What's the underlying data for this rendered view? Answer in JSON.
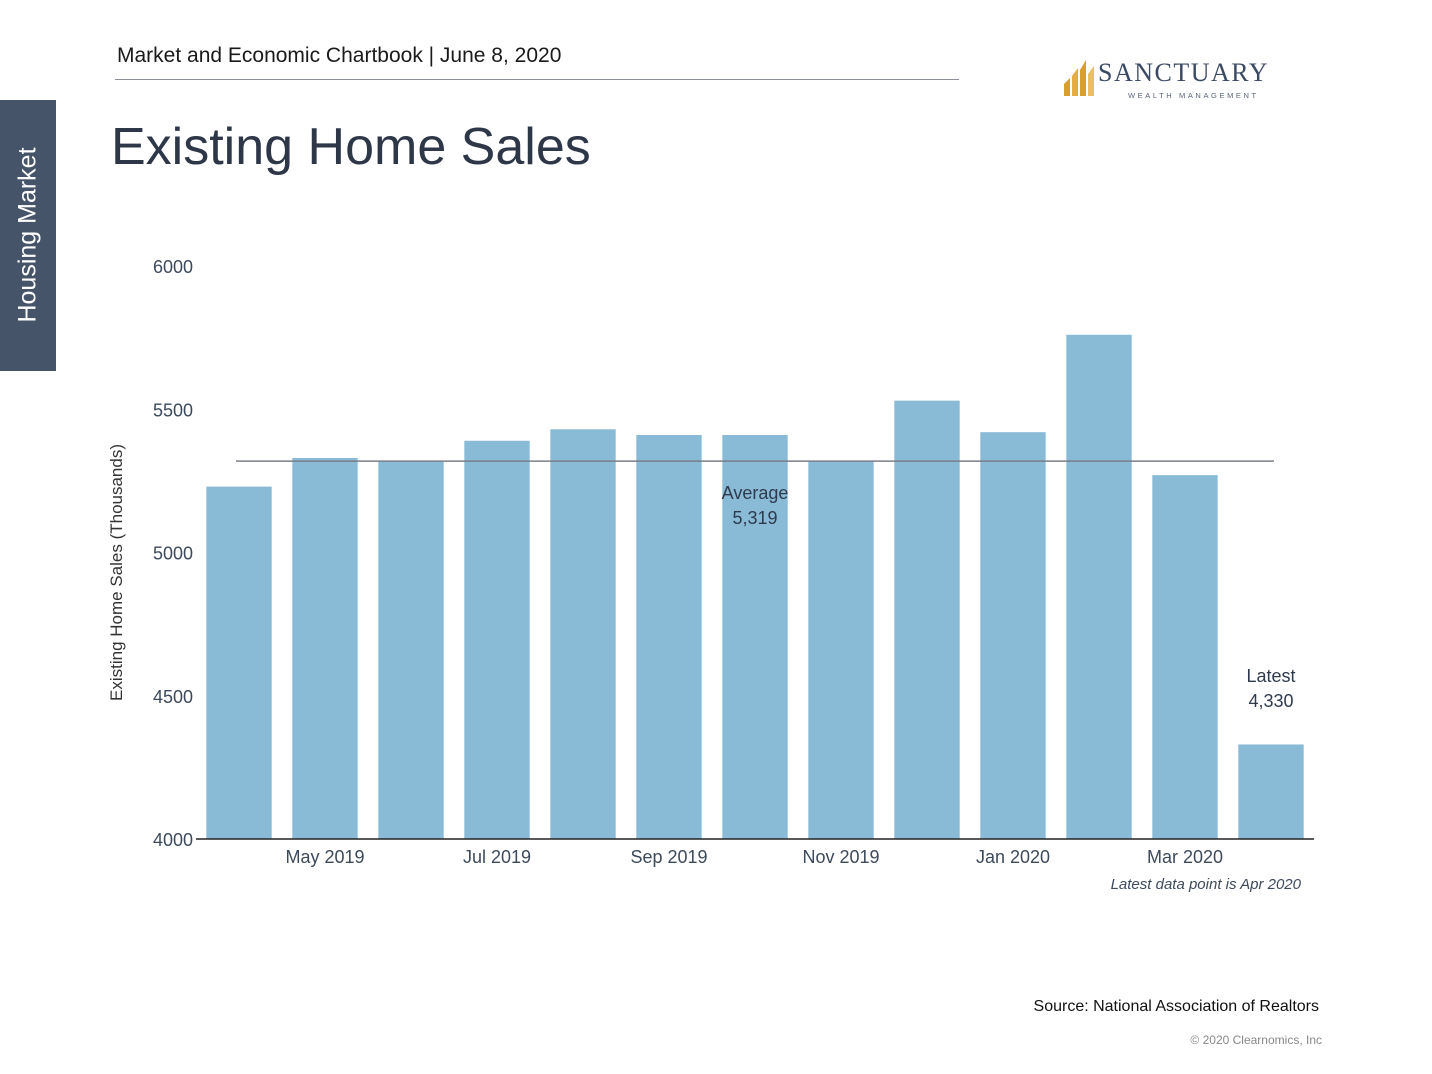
{
  "side_tab": {
    "label": "Housing Market"
  },
  "header": {
    "text": "Market and Economic Chartbook | June 8, 2020"
  },
  "logo": {
    "name": "SANCTUARY",
    "subtitle": "WEALTH MANAGEMENT",
    "icon": "sanctuary-logo-icon",
    "gold": "#D4A12A",
    "navy": "#3B4A64"
  },
  "page_title": "Existing Home Sales",
  "chart_data": {
    "type": "bar",
    "title": "",
    "xlabel": "",
    "ylabel": "Existing Home Sales (Thousands)",
    "ylim": [
      4000,
      6000
    ],
    "yticks": [
      4000,
      4500,
      5000,
      5500,
      6000
    ],
    "categories": [
      "Apr 2019",
      "May 2019",
      "Jun 2019",
      "Jul 2019",
      "Aug 2019",
      "Sep 2019",
      "Oct 2019",
      "Nov 2019",
      "Dec 2019",
      "Jan 2020",
      "Feb 2020",
      "Mar 2020",
      "Apr 2020"
    ],
    "xtick_labels": [
      "May 2019",
      "Jul 2019",
      "Sep 2019",
      "Nov 2019",
      "Jan 2020",
      "Mar 2020"
    ],
    "values": [
      5230,
      5330,
      5320,
      5390,
      5430,
      5410,
      5410,
      5320,
      5530,
      5420,
      5760,
      5270,
      4330
    ],
    "average": {
      "label": "Average",
      "value": 5319,
      "value_label": "5,319"
    },
    "latest": {
      "label": "Latest",
      "value": 4330,
      "value_label": "4,330"
    },
    "note": "Latest data point is Apr 2020",
    "grid": false,
    "bar_color": "#89BAD6",
    "average_line_color": "#7A7F88"
  },
  "footer": {
    "source": "Source: National Association of Realtors",
    "copyright": "© 2020 Clearnomics, Inc"
  }
}
